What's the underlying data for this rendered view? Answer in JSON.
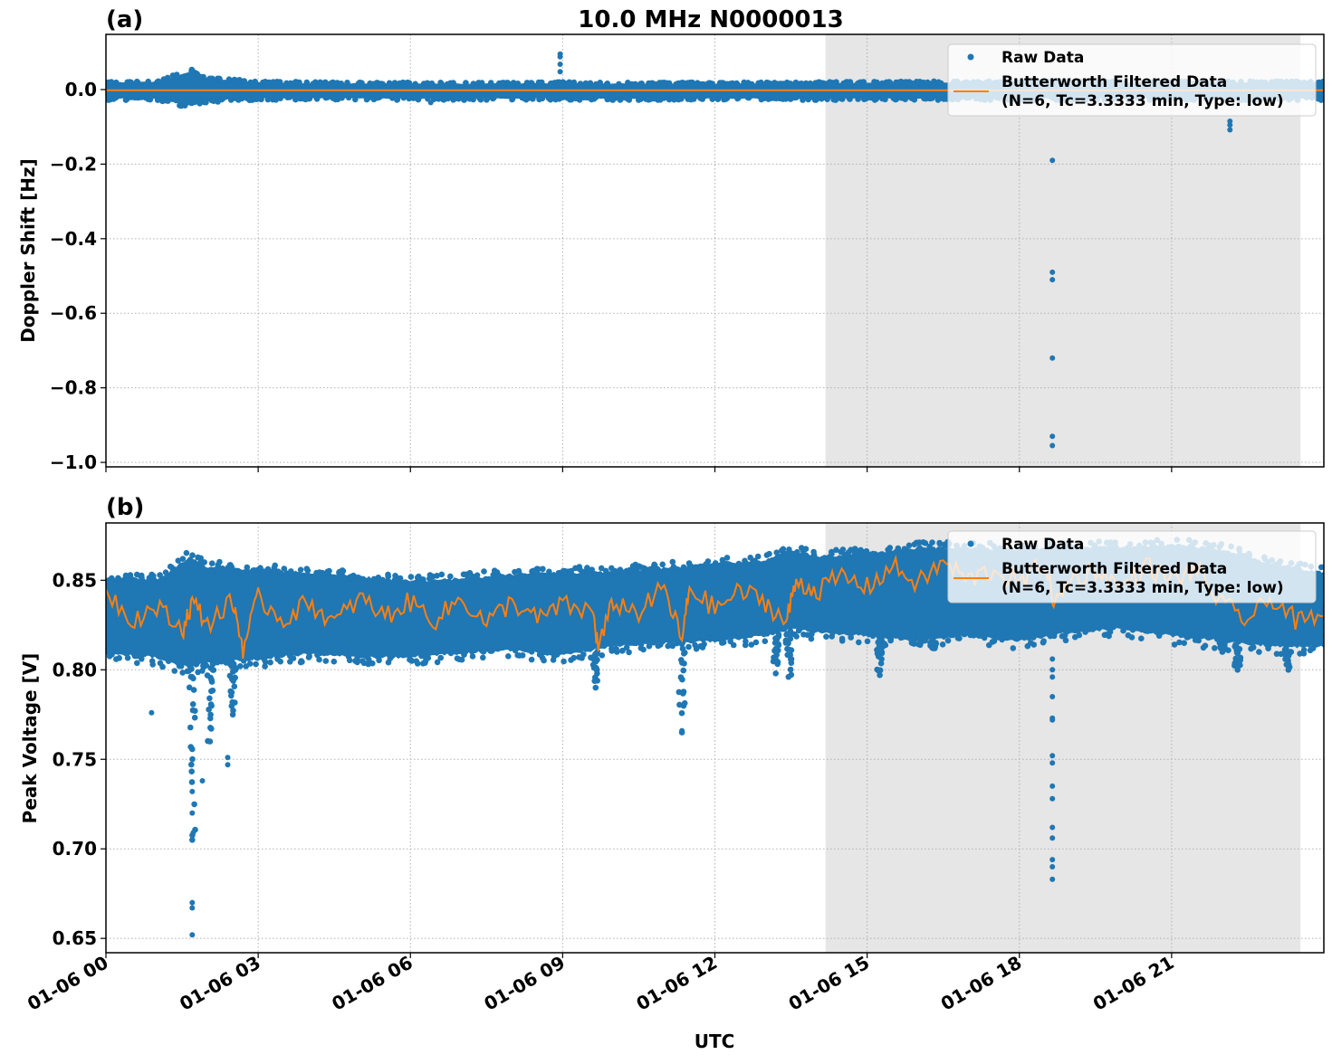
{
  "figure": {
    "title": "10.0 MHz N0000013",
    "xlabel": "UTC",
    "x_tick_labels": [
      "01-06 00",
      "01-06 03",
      "01-06 06",
      "01-06 09",
      "01-06 12",
      "01-06 15",
      "01-06 18",
      "01-06 21"
    ],
    "shaded_region_hours": [
      14.18,
      23.54
    ],
    "colors": {
      "raw": "#1f77b4",
      "filtered": "#ff7f0e",
      "shade": "#e6e6e6",
      "grid": "#b0b0b0",
      "legend_bg": "#ffffff"
    }
  },
  "panels": [
    {
      "label": "(a)",
      "ylabel": "Doppler Shift [Hz]",
      "y_tick_labels": [
        "0.0",
        "−0.2",
        "−0.4",
        "−0.6",
        "−0.8",
        "−1.0"
      ],
      "legend": {
        "raw_label": "Raw Data",
        "filtered_label_line1": "Butterworth Filtered Data",
        "filtered_label_line2": "(N=6, Tc=3.3333 min, Type: low)"
      }
    },
    {
      "label": "(b)",
      "ylabel": "Peak Voltage [V]",
      "y_tick_labels": [
        "0.85",
        "0.80",
        "0.75",
        "0.70",
        "0.65"
      ],
      "legend": {
        "raw_label": "Raw Data",
        "filtered_label_line1": "Butterworth Filtered Data",
        "filtered_label_line2": "(N=6, Tc=3.3333 min, Type: low)"
      }
    }
  ],
  "chart_data": [
    {
      "type": "scatter",
      "title": "10.0 MHz N0000013",
      "panel": "(a)",
      "xlabel": "UTC",
      "ylabel": "Doppler Shift [Hz]",
      "x_unit": "hours since 01-06 00 UTC",
      "xlim": [
        0,
        24
      ],
      "ylim": [
        -1.012,
        0.148
      ],
      "yticks": [
        0.0,
        -0.2,
        -0.4,
        -0.6,
        -0.8,
        -1.0
      ],
      "xticks_hours": [
        0,
        3,
        6,
        9,
        12,
        15,
        18,
        21
      ],
      "grid": true,
      "legend_position": "upper right",
      "shaded_span_hours": [
        14.18,
        23.54
      ],
      "series": [
        {
          "name": "Raw Data",
          "style": "dots",
          "band": {
            "x": [
              0,
              1,
              1.7,
              2,
              3,
              4,
              6,
              8,
              9,
              10,
              12,
              14,
              16,
              18,
              20,
              22,
              24
            ],
            "upper": [
              0.02,
              0.022,
              0.05,
              0.03,
              0.02,
              0.018,
              0.017,
              0.017,
              0.018,
              0.017,
              0.017,
              0.018,
              0.02,
              0.02,
              0.02,
              0.02,
              0.02
            ],
            "lower": [
              -0.025,
              -0.025,
              -0.045,
              -0.03,
              -0.025,
              -0.024,
              -0.025,
              -0.025,
              -0.024,
              -0.025,
              -0.025,
              -0.025,
              -0.025,
              -0.025,
              -0.025,
              -0.025,
              -0.025
            ]
          },
          "outliers": [
            {
              "x": 8.95,
              "y": 0.095
            },
            {
              "x": 8.95,
              "y": 0.088
            },
            {
              "x": 8.95,
              "y": 0.068
            },
            {
              "x": 8.95,
              "y": 0.048
            },
            {
              "x": 6.4,
              "y": -0.035
            },
            {
              "x": 18.65,
              "y": -0.19
            },
            {
              "x": 18.65,
              "y": -0.49
            },
            {
              "x": 18.65,
              "y": -0.51
            },
            {
              "x": 18.65,
              "y": -0.72
            },
            {
              "x": 18.65,
              "y": -0.93
            },
            {
              "x": 18.65,
              "y": -0.955
            },
            {
              "x": 22.15,
              "y": -0.085
            },
            {
              "x": 22.15,
              "y": -0.095
            },
            {
              "x": 22.15,
              "y": -0.108
            }
          ]
        },
        {
          "name": "Butterworth Filtered Data (N=6, Tc=3.3333 min, Type: low)",
          "style": "line",
          "x": [
            0,
            24
          ],
          "values": [
            -0.002,
            -0.002
          ]
        }
      ]
    },
    {
      "type": "scatter",
      "panel": "(b)",
      "xlabel": "UTC",
      "ylabel": "Peak Voltage [V]",
      "x_unit": "hours since 01-06 00 UTC",
      "xlim": [
        0,
        24
      ],
      "ylim": [
        0.642,
        0.882
      ],
      "yticks": [
        0.85,
        0.8,
        0.75,
        0.7,
        0.65
      ],
      "xticks_hours": [
        0,
        3,
        6,
        9,
        12,
        15,
        18,
        21
      ],
      "grid": true,
      "legend_position": "upper right",
      "shaded_span_hours": [
        14.18,
        23.54
      ],
      "series": [
        {
          "name": "Raw Data",
          "style": "dots",
          "band": {
            "x": [
              0,
              1,
              1.65,
              2,
              3,
              4,
              5,
              6,
              7,
              8,
              9,
              10,
              11,
              12,
              13,
              13.5,
              14,
              15,
              16,
              17,
              18,
              19,
              20,
              21,
              22,
              23,
              24
            ],
            "upper": [
              0.852,
              0.851,
              0.864,
              0.858,
              0.857,
              0.855,
              0.853,
              0.85,
              0.852,
              0.854,
              0.855,
              0.856,
              0.858,
              0.86,
              0.862,
              0.868,
              0.864,
              0.866,
              0.869,
              0.869,
              0.868,
              0.87,
              0.869,
              0.871,
              0.868,
              0.86,
              0.855
            ],
            "lower": [
              0.808,
              0.806,
              0.8,
              0.803,
              0.805,
              0.808,
              0.806,
              0.806,
              0.808,
              0.81,
              0.807,
              0.812,
              0.814,
              0.815,
              0.818,
              0.822,
              0.82,
              0.818,
              0.815,
              0.818,
              0.815,
              0.82,
              0.822,
              0.818,
              0.815,
              0.812,
              0.812
            ]
          },
          "dips": [
            {
              "x": 1.7,
              "min": 0.705
            },
            {
              "x": 2.05,
              "min": 0.76
            },
            {
              "x": 2.5,
              "min": 0.775
            },
            {
              "x": 9.65,
              "min": 0.79
            },
            {
              "x": 11.35,
              "min": 0.765
            },
            {
              "x": 13.2,
              "min": 0.798
            },
            {
              "x": 13.45,
              "min": 0.796
            },
            {
              "x": 15.25,
              "min": 0.797
            },
            {
              "x": 16.3,
              "min": 0.812
            },
            {
              "x": 22.0,
              "min": 0.81
            },
            {
              "x": 22.3,
              "min": 0.8
            },
            {
              "x": 23.3,
              "min": 0.8
            }
          ],
          "outliers": [
            {
              "x": 1.7,
              "y": 0.67
            },
            {
              "x": 1.7,
              "y": 0.667
            },
            {
              "x": 1.7,
              "y": 0.652
            },
            {
              "x": 1.7,
              "y": 0.732
            },
            {
              "x": 1.7,
              "y": 0.72
            },
            {
              "x": 1.72,
              "y": 0.709
            },
            {
              "x": 1.9,
              "y": 0.738
            },
            {
              "x": 2.4,
              "y": 0.747
            },
            {
              "x": 2.4,
              "y": 0.751
            },
            {
              "x": 0.9,
              "y": 0.776
            },
            {
              "x": 11.35,
              "y": 0.766
            },
            {
              "x": 18.65,
              "y": 0.683
            },
            {
              "x": 18.65,
              "y": 0.69
            },
            {
              "x": 18.65,
              "y": 0.694
            },
            {
              "x": 18.65,
              "y": 0.706
            },
            {
              "x": 18.65,
              "y": 0.712
            },
            {
              "x": 18.65,
              "y": 0.728
            },
            {
              "x": 18.65,
              "y": 0.735
            },
            {
              "x": 18.65,
              "y": 0.748
            },
            {
              "x": 18.65,
              "y": 0.752
            },
            {
              "x": 18.65,
              "y": 0.772
            },
            {
              "x": 18.65,
              "y": 0.773
            },
            {
              "x": 18.65,
              "y": 0.785
            },
            {
              "x": 18.65,
              "y": 0.796
            },
            {
              "x": 18.65,
              "y": 0.8
            },
            {
              "x": 18.65,
              "y": 0.806
            }
          ]
        },
        {
          "name": "Butterworth Filtered Data (N=6, Tc=3.3333 min, Type: low)",
          "style": "line",
          "x": [
            0,
            0.5,
            1,
            1.5,
            1.7,
            2,
            2.5,
            2.7,
            3,
            3.5,
            4,
            4.5,
            5,
            5.5,
            6,
            6.5,
            7,
            7.5,
            8,
            8.5,
            9,
            9.6,
            9.7,
            10,
            10.5,
            11,
            11.35,
            11.5,
            12,
            12.5,
            13,
            13.4,
            13.6,
            14,
            14.5,
            15,
            15.5,
            16,
            16.5,
            17,
            17.5,
            18,
            18.5,
            18.7,
            19,
            19.5,
            20,
            20.5,
            21,
            21.5,
            22,
            22.5,
            23,
            23.5,
            24
          ],
          "values": [
            0.845,
            0.828,
            0.835,
            0.822,
            0.838,
            0.826,
            0.838,
            0.812,
            0.84,
            0.828,
            0.838,
            0.826,
            0.84,
            0.83,
            0.838,
            0.828,
            0.84,
            0.826,
            0.838,
            0.828,
            0.836,
            0.832,
            0.812,
            0.838,
            0.832,
            0.846,
            0.816,
            0.846,
            0.834,
            0.844,
            0.838,
            0.826,
            0.85,
            0.844,
            0.852,
            0.846,
            0.858,
            0.848,
            0.86,
            0.85,
            0.856,
            0.848,
            0.86,
            0.836,
            0.85,
            0.856,
            0.846,
            0.858,
            0.85,
            0.856,
            0.836,
            0.828,
            0.84,
            0.826,
            0.83
          ]
        }
      ]
    }
  ]
}
